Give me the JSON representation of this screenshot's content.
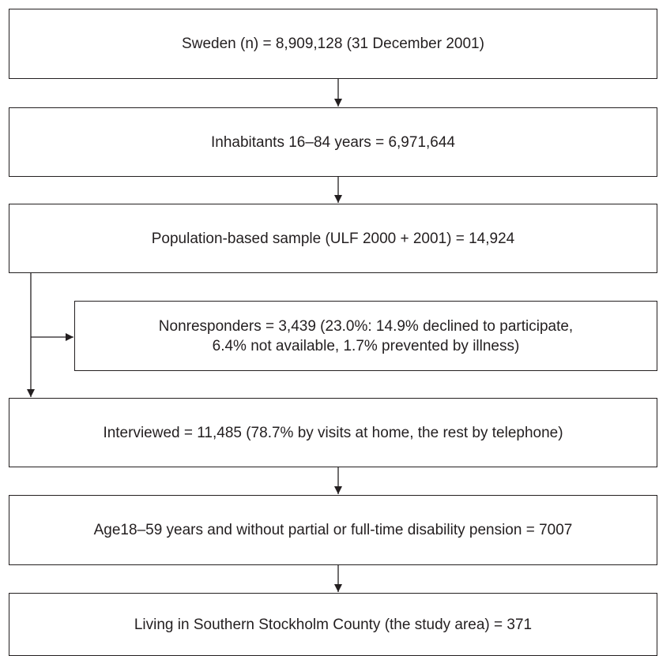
{
  "flowchart": {
    "steps": [
      {
        "lines": [
          "Sweden (n) = 8,909,128 (31 December 2001)"
        ]
      },
      {
        "lines": [
          "Inhabitants 16–84 years = 6,971,644"
        ]
      },
      {
        "lines": [
          "Population-based sample (ULF 2000 + 2001) = 14,924"
        ]
      },
      {
        "lines": [
          "Nonresponders = 3,439 (23.0%: 14.9% declined to participate,",
          "6.4% not  available, 1.7% prevented by illness)"
        ]
      },
      {
        "lines": [
          "Interviewed = 11,485 (78.7% by visits at home, the rest by telephone)"
        ]
      },
      {
        "lines": [
          "Age18–59 years and without partial or full-time disability pension = 7007"
        ]
      },
      {
        "lines": [
          "Living in Southern Stockholm County (the study area) = 371"
        ]
      }
    ]
  },
  "colors": {
    "line": "#231f20",
    "background": "#ffffff"
  }
}
